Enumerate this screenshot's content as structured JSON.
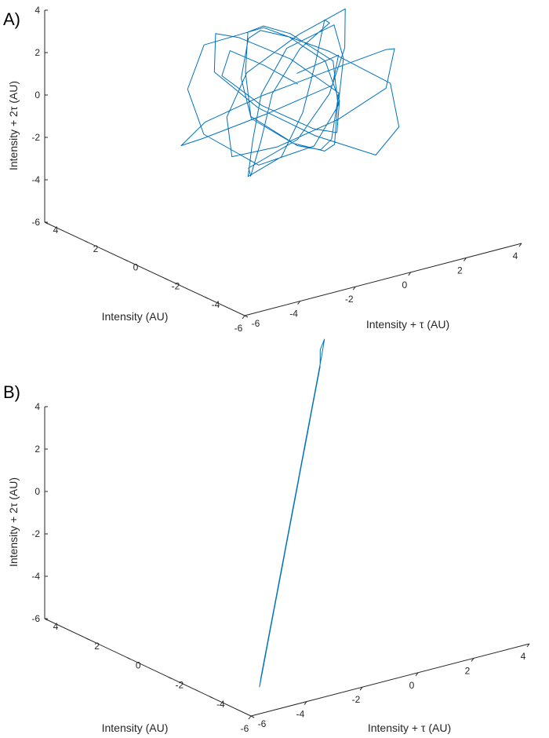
{
  "chart_data": [
    {
      "type": "line",
      "panel_label": "A)",
      "projection": "3d",
      "xlabel": "Intensity (AU)",
      "ylabel": "Intensity + τ (AU)",
      "zlabel": "Intensity + 2τ (AU)",
      "xlim": [
        -6,
        4
      ],
      "ylim": [
        -6,
        4
      ],
      "zlim": [
        -6,
        4
      ],
      "xticks": [
        "-6",
        "-4",
        "-2",
        "0",
        "2",
        "4"
      ],
      "yticks": [
        "-6",
        "-4",
        "-2",
        "0",
        "2",
        "4"
      ],
      "zticks": [
        "-6",
        "-4",
        "-2",
        "0",
        "2",
        "4"
      ],
      "grid": false,
      "line_color": "#0072BD",
      "series": [
        {
          "description_pattern": "scattered-cloud",
          "x": [
            -0.2,
            0.5,
            1.1,
            0.4,
            -0.9,
            -1.8,
            -1.2,
            0.2,
            1.6,
            2.3,
            1.8,
            0.6,
            -0.7,
            -1.9,
            -2.6,
            -2.1,
            -0.8,
            0.7,
            1.9,
            2.8,
            2.2,
            0.9,
            -0.5,
            -1.6,
            -2.4,
            -1.5,
            -0.1,
            1.2,
            2.5,
            3.0,
            2.1,
            0.5,
            -1.0,
            -2.2,
            -3.0,
            -2.5,
            -1.1,
            0.3,
            1.5,
            2.4,
            1.7,
            0.2,
            -1.3,
            -2.0,
            -1.4,
            0.0,
            1.3,
            2.0,
            1.2,
            -0.3,
            -1.6,
            -2.3,
            -1.7,
            -0.4,
            0.8,
            1.8,
            2.6,
            1.9,
            0.4,
            -0.9,
            -1.9,
            -2.7,
            -2.2,
            -0.9,
            0.6,
            1.7,
            2.2,
            1.4,
            -0.1,
            -1.4,
            -2.5,
            -3.1,
            -2.0,
            -0.6,
            0.9,
            2.1,
            2.9,
            2.3,
            0.8,
            -0.7,
            -1.8,
            -1.0,
            0.1
          ],
          "y": [
            0.1,
            -0.6,
            -1.4,
            -2.2,
            -1.7,
            -0.5,
            0.8,
            1.9,
            2.4,
            1.6,
            0.2,
            -1.1,
            -2.3,
            -2.8,
            -1.8,
            -0.3,
            1.0,
            2.2,
            2.9,
            2.0,
            0.6,
            -0.9,
            -2.0,
            -2.6,
            -1.5,
            0.0,
            1.4,
            2.6,
            1.8,
            0.3,
            -1.2,
            -2.4,
            -1.9,
            -0.7,
            0.9,
            2.1,
            2.8,
            1.6,
            0.1,
            -1.4,
            -2.5,
            -3.0,
            -2.1,
            -0.6,
            0.7,
            1.9,
            2.5,
            1.3,
            -0.2,
            -1.6,
            -2.7,
            -2.0,
            -0.8,
            0.6,
            1.8,
            2.7,
            2.2,
            0.7,
            -0.8,
            -2.1,
            -2.9,
            -1.7,
            -0.2,
            1.3,
            2.4,
            1.5,
            0.0,
            -1.3,
            -2.2,
            -1.5,
            -0.1,
            1.2,
            2.3,
            3.0,
            2.1,
            0.5,
            -1.0,
            -2.3,
            -2.6,
            -1.4,
            0.2,
            1.0,
            0.3
          ],
          "z": [
            0.3,
            1.1,
            1.8,
            1.2,
            0.2,
            -0.9,
            -1.8,
            -1.3,
            -0.2,
            0.9,
            1.9,
            2.5,
            1.6,
            0.4,
            -0.8,
            -1.9,
            -2.6,
            -1.7,
            -0.5,
            0.7,
            1.8,
            2.6,
            1.7,
            0.3,
            -1.1,
            -2.2,
            -2.8,
            -1.6,
            -0.3,
            1.0,
            2.1,
            1.4,
            0.2,
            -1.0,
            -2.1,
            -1.4,
            -0.2,
            1.1,
            2.2,
            1.5,
            0.1,
            -1.2,
            -2.3,
            -1.6,
            -0.4,
            0.8,
            1.6,
            0.6,
            -0.7,
            -1.8,
            -2.5,
            -1.5,
            -0.1,
            1.2,
            2.3,
            1.4,
            0.0,
            -1.3,
            -2.4,
            -3.0,
            -1.9,
            -0.6,
            0.8,
            1.9,
            2.7,
            1.3,
            -0.2,
            -1.5,
            -2.4,
            -1.6,
            -0.3,
            1.0,
            2.0,
            1.1,
            -0.2,
            -1.4,
            -2.5,
            -2.9,
            -1.8,
            -0.4,
            0.9,
            1.7,
            0.6
          ]
        }
      ]
    },
    {
      "type": "line",
      "panel_label": "B)",
      "projection": "3d",
      "xlabel": "Intensity (AU)",
      "ylabel": "Intensity + τ (AU)",
      "zlabel": "Intensity + 2τ (AU)",
      "xlim": [
        -6,
        4
      ],
      "ylim": [
        -6,
        4
      ],
      "zlim": [
        -6,
        4
      ],
      "xticks": [
        "-6",
        "-4",
        "-2",
        "0",
        "2",
        "4"
      ],
      "yticks": [
        "-6",
        "-4",
        "-2",
        "0",
        "2",
        "4"
      ],
      "zticks": [
        "-6",
        "-4",
        "-2",
        "0",
        "2",
        "4"
      ],
      "grid": false,
      "line_color": "#0072BD",
      "series": [
        {
          "description_pattern": "diagonal-line",
          "x": [
            0.0,
            0.4,
            0.8,
            1.2,
            1.6,
            2.0,
            2.4,
            2.8,
            3.2,
            3.6,
            3.8,
            3.4,
            3.0,
            2.6,
            2.2,
            1.8,
            1.4,
            1.0,
            0.6,
            0.2,
            -0.2,
            -0.6,
            -1.0,
            -1.4,
            -1.8,
            -2.2,
            -2.6,
            -3.0,
            -3.4,
            -3.8,
            -4.2,
            -4.6,
            -5.0,
            -5.2,
            -4.8,
            -4.4,
            -4.0,
            -3.6,
            -3.2,
            -2.8,
            -2.4,
            -2.0,
            -1.6,
            -1.2,
            -0.8,
            -0.4,
            0.0,
            0.4,
            0.8,
            1.2,
            1.6,
            2.0,
            2.4,
            2.8,
            3.2,
            3.0,
            2.6,
            2.2,
            1.8,
            1.4,
            1.0,
            0.6,
            0.2,
            -0.2,
            -0.6,
            -1.0,
            -1.4,
            -1.8,
            -2.2,
            -2.6,
            -3.0,
            -3.4,
            -3.8,
            -4.2,
            -4.6,
            -4.4,
            -4.0,
            -3.6,
            -3.2,
            -2.8,
            -2.4,
            -2.0,
            -1.6,
            -1.2,
            -0.8,
            -0.4,
            0.0
          ],
          "y": [
            0.1,
            0.5,
            0.9,
            1.3,
            1.7,
            2.1,
            2.5,
            2.9,
            3.3,
            3.6,
            3.9,
            3.5,
            3.1,
            2.7,
            2.3,
            1.9,
            1.5,
            1.1,
            0.7,
            0.3,
            -0.1,
            -0.5,
            -0.9,
            -1.3,
            -1.7,
            -2.1,
            -2.5,
            -2.9,
            -3.3,
            -3.7,
            -4.1,
            -4.5,
            -4.9,
            -5.1,
            -4.7,
            -4.3,
            -3.9,
            -3.5,
            -3.1,
            -2.7,
            -2.3,
            -1.9,
            -1.5,
            -1.1,
            -0.7,
            -0.3,
            0.1,
            0.5,
            0.9,
            1.3,
            1.7,
            2.1,
            2.5,
            2.9,
            3.3,
            3.1,
            2.7,
            2.3,
            1.9,
            1.5,
            1.1,
            0.7,
            0.3,
            -0.1,
            -0.5,
            -0.9,
            -1.3,
            -1.7,
            -2.1,
            -2.5,
            -2.9,
            -3.3,
            -3.7,
            -4.1,
            -4.5,
            -4.3,
            -3.9,
            -3.5,
            -3.1,
            -2.7,
            -2.3,
            -1.9,
            -1.5,
            -1.1,
            -0.7,
            -0.3,
            0.1
          ],
          "z": [
            0.0,
            0.4,
            0.8,
            1.2,
            1.6,
            2.0,
            2.4,
            2.8,
            3.2,
            3.6,
            3.9,
            3.4,
            3.0,
            2.6,
            2.2,
            1.8,
            1.4,
            1.0,
            0.6,
            0.2,
            -0.2,
            -0.6,
            -1.0,
            -1.4,
            -1.8,
            -2.2,
            -2.6,
            -3.0,
            -3.4,
            -3.8,
            -4.2,
            -4.6,
            -5.0,
            -5.3,
            -4.9,
            -4.5,
            -4.1,
            -3.7,
            -3.3,
            -2.9,
            -2.5,
            -2.1,
            -1.7,
            -1.3,
            -0.9,
            -0.5,
            -0.1,
            0.3,
            0.7,
            1.1,
            1.5,
            1.9,
            2.3,
            2.7,
            3.1,
            3.0,
            2.6,
            2.2,
            1.8,
            1.4,
            1.0,
            0.6,
            0.2,
            -0.2,
            -0.6,
            -1.0,
            -1.4,
            -1.8,
            -2.2,
            -2.6,
            -3.0,
            -3.4,
            -3.8,
            -4.2,
            -4.6,
            -4.4,
            -4.0,
            -3.6,
            -3.2,
            -2.8,
            -2.4,
            -2.0,
            -1.6,
            -1.2,
            -0.8,
            -0.4,
            0.0
          ]
        }
      ]
    }
  ]
}
